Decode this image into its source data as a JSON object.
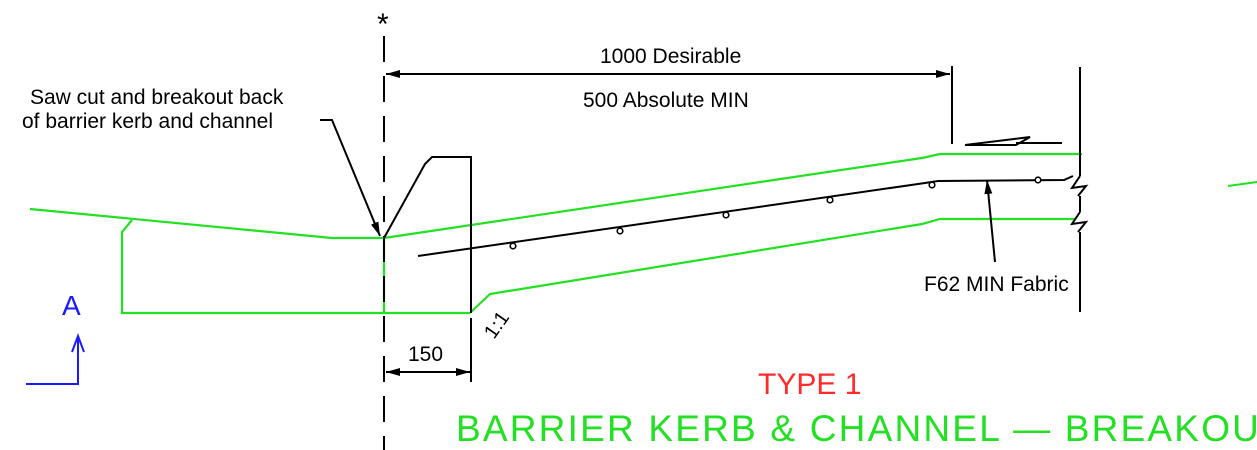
{
  "labels": {
    "asterisk": "*",
    "dim_desirable": "1000 Desirable",
    "dim_absolute": "500 Absolute MIN",
    "note_line1": "Saw cut and breakout back",
    "note_line2": "of barrier kerb and channel",
    "fabric": "F62 MIN Fabric",
    "dim_150": "150",
    "slope": "1:1",
    "section_marker": "A",
    "type": "TYPE 1",
    "title": "BARRIER KERB & CHANNEL — BREAKOUT"
  },
  "colors": {
    "green": "#22e022",
    "red": "#ff2a2a",
    "blue": "#1a1aff",
    "black": "#000000"
  }
}
